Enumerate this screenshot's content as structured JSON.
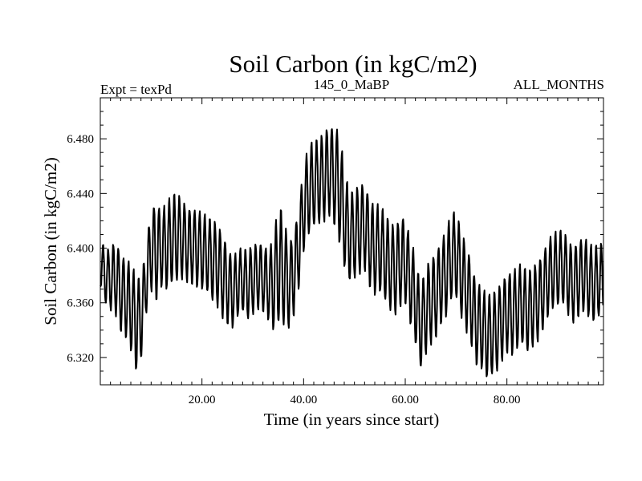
{
  "chart_data": {
    "type": "line",
    "title": "Soil Carbon (in kgC/m2)",
    "subtitle_left": "Expt = texPd",
    "subtitle_center": "145_0_MaBP",
    "subtitle_right": "ALL_MONTHS",
    "xlabel": "Time (in years since start)",
    "ylabel": "Soil Carbon (in kgC/m2)",
    "xlim": [
      0,
      99
    ],
    "ylim": [
      6.3,
      6.51
    ],
    "x_ticks": [
      20,
      40,
      60,
      80
    ],
    "x_tick_labels": [
      "20.00",
      "40.00",
      "60.00",
      "80.00"
    ],
    "y_ticks": [
      6.32,
      6.36,
      6.4,
      6.44,
      6.48
    ],
    "y_tick_labels": [
      "6.320",
      "6.360",
      "6.400",
      "6.440",
      "6.480"
    ],
    "series": [
      {
        "name": "Soil Carbon",
        "color": "#000000",
        "samples_per_year": 12,
        "annual_max": [
          6.405,
          6.4,
          6.398,
          6.407,
          6.395,
          6.392,
          6.388,
          6.38,
          6.376,
          6.4,
          6.43,
          6.432,
          6.428,
          6.432,
          6.438,
          6.44,
          6.436,
          6.43,
          6.428,
          6.428,
          6.425,
          6.423,
          6.42,
          6.418,
          6.41,
          6.402,
          6.392,
          6.398,
          6.4,
          6.398,
          6.402,
          6.404,
          6.403,
          6.398,
          6.405,
          6.43,
          6.426,
          6.402,
          6.41,
          6.428,
          6.46,
          6.474,
          6.478,
          6.48,
          6.484,
          6.49,
          6.488,
          6.486,
          6.458,
          6.44,
          6.442,
          6.446,
          6.448,
          6.436,
          6.43,
          6.432,
          6.425,
          6.418,
          6.416,
          6.422,
          6.423,
          6.405,
          6.395,
          6.37,
          6.385,
          6.392,
          6.396,
          6.405,
          6.412,
          6.424,
          6.427,
          6.412,
          6.402,
          6.39,
          6.374,
          6.372,
          6.365,
          6.366,
          6.369,
          6.375,
          6.382,
          6.382,
          6.386,
          6.388,
          6.382,
          6.385,
          6.39,
          6.395,
          6.405,
          6.41,
          6.412,
          6.413,
          6.406,
          6.4,
          6.405,
          6.408,
          6.404,
          6.4,
          6.403
        ],
        "annual_min": [
          6.372,
          6.36,
          6.355,
          6.352,
          6.34,
          6.335,
          6.325,
          6.31,
          6.318,
          6.352,
          6.37,
          6.362,
          6.372,
          6.37,
          6.374,
          6.376,
          6.378,
          6.376,
          6.374,
          6.372,
          6.37,
          6.368,
          6.362,
          6.358,
          6.35,
          6.345,
          6.342,
          6.35,
          6.354,
          6.348,
          6.352,
          6.356,
          6.354,
          6.348,
          6.34,
          6.345,
          6.344,
          6.342,
          6.35,
          6.37,
          6.398,
          6.41,
          6.416,
          6.418,
          6.42,
          6.425,
          6.418,
          6.405,
          6.386,
          6.376,
          6.378,
          6.382,
          6.385,
          6.372,
          6.366,
          6.368,
          6.362,
          6.355,
          6.352,
          6.358,
          6.36,
          6.345,
          6.33,
          6.312,
          6.322,
          6.33,
          6.335,
          6.345,
          6.35,
          6.362,
          6.364,
          6.35,
          6.34,
          6.33,
          6.315,
          6.312,
          6.305,
          6.307,
          6.31,
          6.318,
          6.324,
          6.322,
          6.327,
          6.33,
          6.324,
          6.328,
          6.332,
          6.34,
          6.35,
          6.356,
          6.358,
          6.36,
          6.352,
          6.346,
          6.35,
          6.354,
          6.35,
          6.346,
          6.35
        ]
      }
    ]
  }
}
